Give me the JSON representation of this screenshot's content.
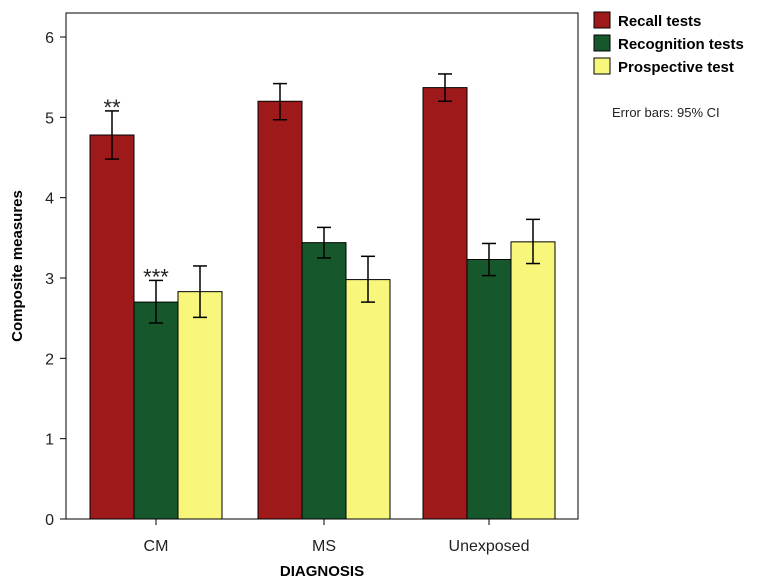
{
  "chart_data": {
    "type": "bar",
    "xlabel": "DIAGNOSIS",
    "ylabel": "Composite measures",
    "ylim": [
      0,
      6.2
    ],
    "yticks": [
      0,
      1,
      2,
      3,
      4,
      5,
      6
    ],
    "categories": [
      "CM",
      "MS",
      "Unexposed"
    ],
    "series": [
      {
        "name": "Recall tests",
        "color": "#9e1a1a",
        "values": [
          4.78,
          5.2,
          5.37
        ],
        "ci_low": [
          4.48,
          4.97,
          5.2
        ],
        "ci_high": [
          5.08,
          5.42,
          5.54
        ]
      },
      {
        "name": "Recognition tests",
        "color": "#16582b",
        "values": [
          2.7,
          3.44,
          3.23
        ],
        "ci_low": [
          2.44,
          3.25,
          3.03
        ],
        "ci_high": [
          2.97,
          3.63,
          3.43
        ]
      },
      {
        "name": "Prospective test",
        "color": "#f8f77c",
        "values": [
          2.83,
          2.98,
          3.45
        ],
        "ci_low": [
          2.51,
          2.7,
          3.18
        ],
        "ci_high": [
          3.15,
          3.27,
          3.73
        ]
      }
    ],
    "annotations": [
      {
        "text": "**",
        "category": "CM",
        "series": "Recall tests"
      },
      {
        "text": "***",
        "category": "CM",
        "series": "Recognition tests"
      }
    ],
    "legend_position": "right",
    "note": "Error bars: 95% CI",
    "grid": false
  }
}
